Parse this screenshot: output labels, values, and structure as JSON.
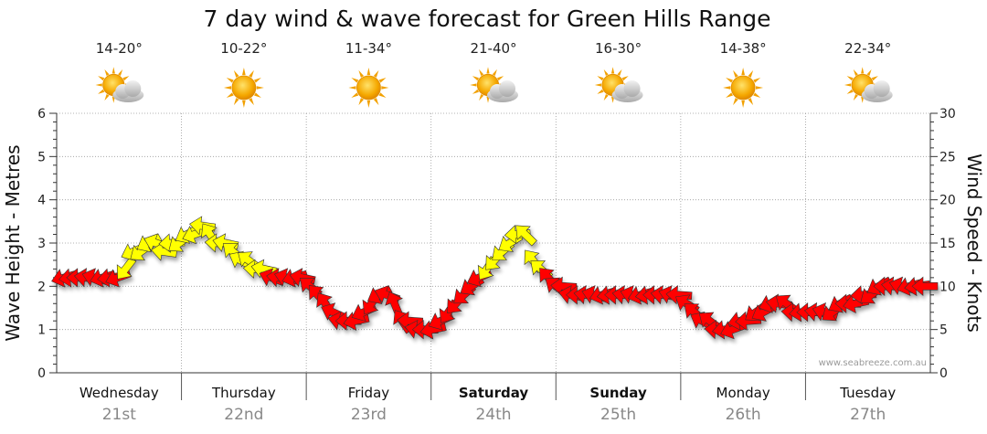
{
  "chart_data": {
    "type": "line",
    "title": "7 day wind & wave forecast for Green Hills Range",
    "ylabel_left": "Wave Height - Metres",
    "ylabel_right": "Wind Speed - Knots",
    "y_left_ticks": [
      "0",
      "1",
      "2",
      "3",
      "4",
      "5",
      "6"
    ],
    "y_right_ticks": [
      "0",
      "5",
      "10",
      "15",
      "20",
      "25",
      "30"
    ],
    "ylim_left": [
      0,
      6
    ],
    "ylim_right": [
      0,
      30
    ],
    "watermark": "www.seabreeze.com.au",
    "days": [
      {
        "name": "Wednesday",
        "date": "21st",
        "temp": "14-20°",
        "icon": "partly-cloudy-icon",
        "bold": false
      },
      {
        "name": "Thursday",
        "date": "22nd",
        "temp": "10-22°",
        "icon": "sunny-icon",
        "bold": false
      },
      {
        "name": "Friday",
        "date": "23rd",
        "temp": "11-34°",
        "icon": "sunny-icon",
        "bold": false
      },
      {
        "name": "Saturday",
        "date": "24th",
        "temp": "21-40°",
        "icon": "partly-cloudy-icon",
        "bold": true
      },
      {
        "name": "Sunday",
        "date": "25th",
        "temp": "16-30°",
        "icon": "partly-cloudy-icon",
        "bold": true
      },
      {
        "name": "Monday",
        "date": "26th",
        "temp": "14-38°",
        "icon": "sunny-icon",
        "bold": false
      },
      {
        "name": "Tuesday",
        "date": "27th",
        "temp": "22-34°",
        "icon": "partly-cloudy-icon",
        "bold": false
      }
    ],
    "wind_speed_knots": [
      11,
      11,
      11,
      11,
      11,
      11,
      11,
      11,
      12,
      14,
      14,
      15,
      15,
      14,
      15,
      15,
      16,
      16,
      17,
      16,
      15,
      15,
      14,
      13,
      13,
      12,
      12,
      11,
      11,
      11,
      11,
      11,
      10,
      9,
      8,
      7,
      6,
      6,
      6,
      7,
      8,
      9,
      9,
      8,
      6,
      6,
      5,
      5,
      5,
      6,
      7,
      8,
      9,
      10,
      11,
      12,
      13,
      14,
      15,
      16,
      16,
      13,
      12,
      11,
      10,
      10,
      9,
      9,
      9,
      9,
      9,
      9,
      9,
      9,
      9,
      9,
      9,
      9,
      9,
      9,
      9,
      8,
      7,
      6,
      6,
      5,
      5,
      5,
      6,
      6,
      7,
      7,
      8,
      8,
      8,
      7,
      7,
      7,
      7,
      7,
      7,
      8,
      8,
      8,
      9,
      9,
      10,
      10,
      10,
      10,
      10,
      10,
      10
    ],
    "wind_colors": {
      "light": "#ffff00",
      "strong": "#ff0000",
      "outline": "#333333"
    },
    "wind_color_threshold_knots": 12
  }
}
